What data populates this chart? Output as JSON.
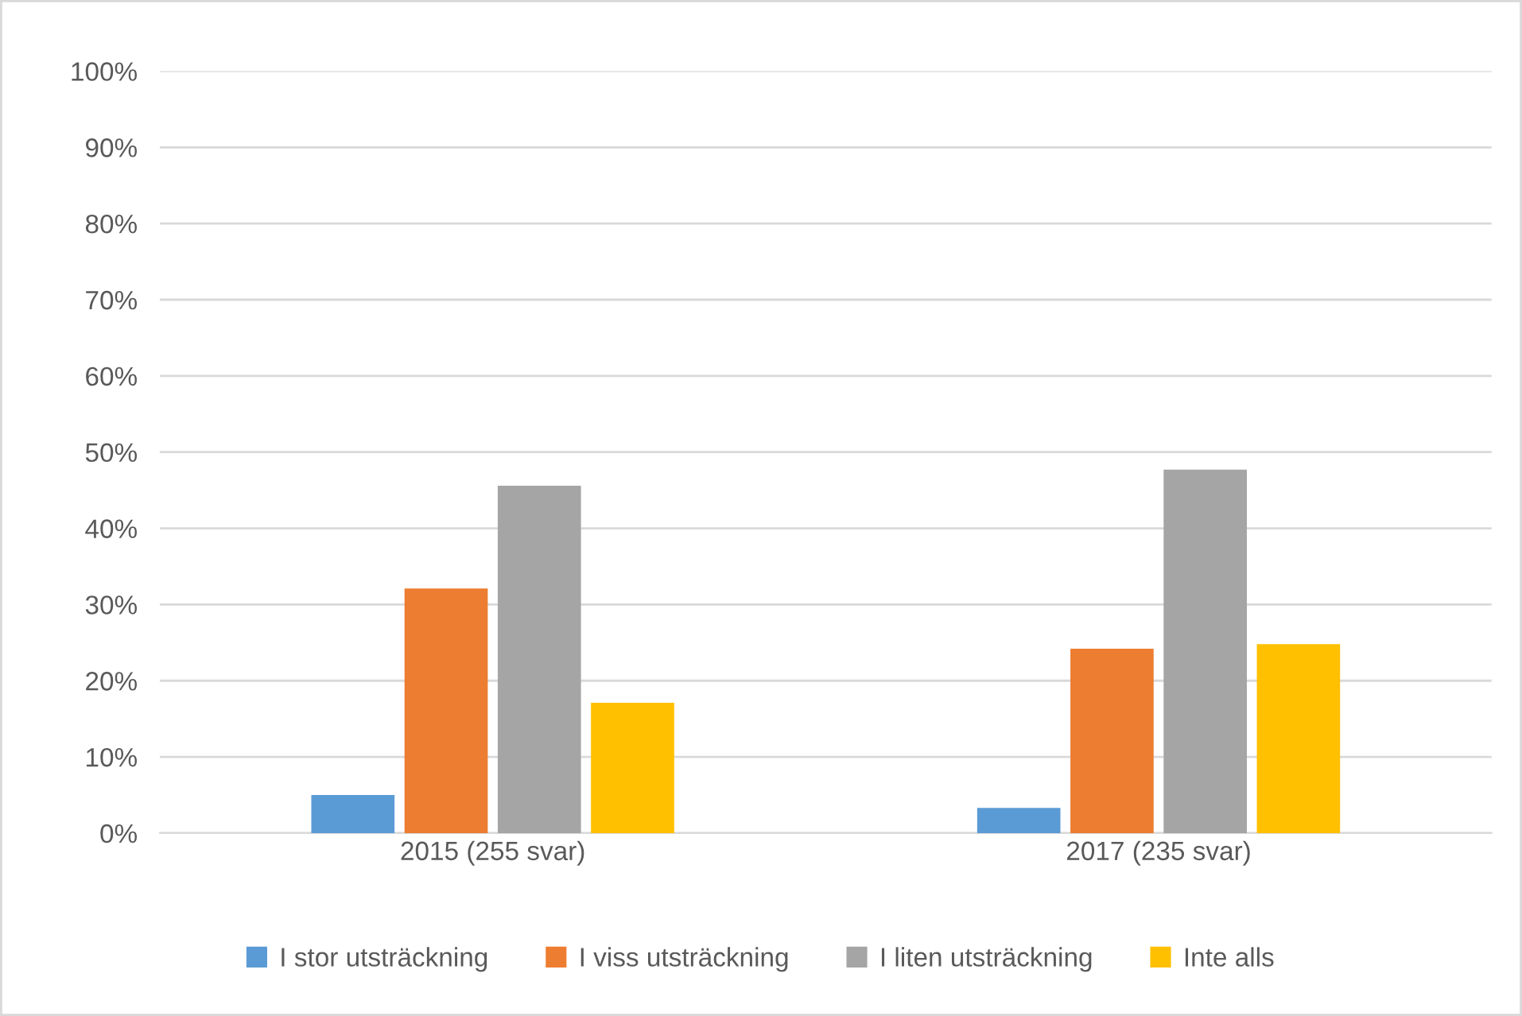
{
  "chart_data": {
    "type": "bar",
    "categories": [
      "2015 (255 svar)",
      "2017 (235 svar)"
    ],
    "series": [
      {
        "name": "I stor utsträckning",
        "color": "#5b9bd5",
        "values": [
          5.0,
          3.3
        ]
      },
      {
        "name": "I viss utsträckning",
        "color": "#ed7d31",
        "values": [
          32.1,
          24.2
        ]
      },
      {
        "name": "I liten utsträckning",
        "color": "#a5a5a5",
        "values": [
          45.6,
          47.7
        ]
      },
      {
        "name": "Inte alls",
        "color": "#ffc000",
        "values": [
          17.1,
          24.8
        ]
      }
    ],
    "ylim": [
      0,
      100
    ],
    "yticks": [
      {
        "value": 0,
        "label": "0%"
      },
      {
        "value": 10,
        "label": "10%"
      },
      {
        "value": 20,
        "label": "20%"
      },
      {
        "value": 30,
        "label": "30%"
      },
      {
        "value": 40,
        "label": "40%"
      },
      {
        "value": 50,
        "label": "50%"
      },
      {
        "value": 60,
        "label": "60%"
      },
      {
        "value": 70,
        "label": "70%"
      },
      {
        "value": 80,
        "label": "80%"
      },
      {
        "value": 90,
        "label": "90%"
      },
      {
        "value": 100,
        "label": "100%"
      }
    ],
    "grid": "y",
    "legend": "bottom"
  }
}
